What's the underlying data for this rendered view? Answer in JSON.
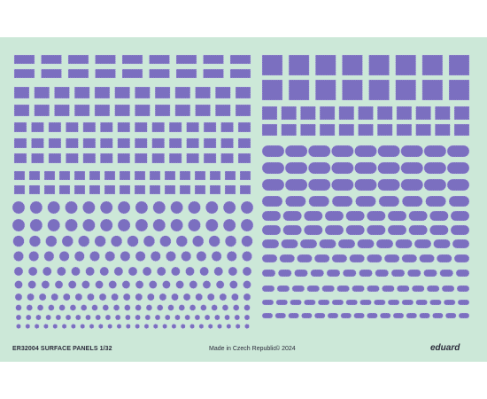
{
  "sheet": {
    "background_color": "#cce8d8",
    "panel_color": "#7b6fc0",
    "panel_stitch_color": "#c8c4ea",
    "product_code_label": "ER32004 SURFACE PANELS 1/32",
    "made_in_label": "Made in Czech Republic",
    "copyright_label": "© 2024",
    "brand_logo": "eduard"
  },
  "panel_groups": [
    {
      "name": "wide-rectangle-panels",
      "shape": "rectangle"
    },
    {
      "name": "large-square-panels",
      "shape": "square"
    },
    {
      "name": "medium-rectangle-panels",
      "shape": "rectangle"
    },
    {
      "name": "small-square-panels",
      "shape": "square"
    },
    {
      "name": "oval-panels",
      "shape": "oval"
    },
    {
      "name": "round-panels",
      "shape": "circle"
    }
  ]
}
